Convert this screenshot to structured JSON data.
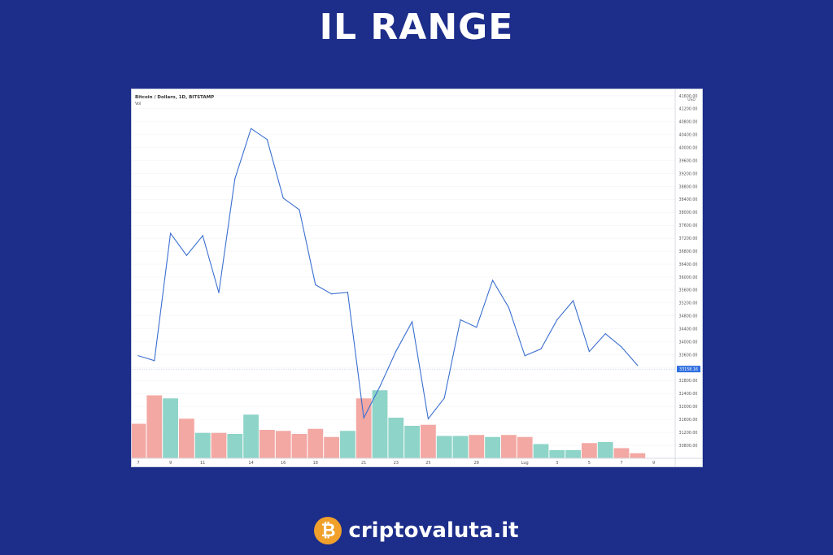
{
  "page": {
    "headline": "IL RANGE",
    "brand": {
      "name": "criptovaluta.it",
      "logo_glyph": "₿",
      "logo_color": "#f0a02b"
    },
    "background_color": "#1c2d8a"
  },
  "chart_data": {
    "type": "line",
    "title": "Bitcoin / Dollaro, 1D, BITSTAMP",
    "subtitle": "Vol",
    "currency_label": "USD",
    "y_axis_side": "right",
    "ylim": [
      30400,
      41800
    ],
    "yticks": [
      30800,
      31200,
      31600,
      32000,
      32400,
      32800,
      33200,
      33600,
      34000,
      34400,
      34800,
      35200,
      35600,
      36000,
      36400,
      36800,
      37200,
      37600,
      38000,
      38400,
      38800,
      39200,
      39600,
      40000,
      40400,
      40800,
      41200,
      41600
    ],
    "x_ticks": [
      {
        "i": 0,
        "label": "7"
      },
      {
        "i": 2,
        "label": "9"
      },
      {
        "i": 4,
        "label": "11"
      },
      {
        "i": 7,
        "label": "14"
      },
      {
        "i": 9,
        "label": "16"
      },
      {
        "i": 11,
        "label": "18"
      },
      {
        "i": 14,
        "label": "21"
      },
      {
        "i": 16,
        "label": "23"
      },
      {
        "i": 18,
        "label": "25"
      },
      {
        "i": 21,
        "label": "28"
      },
      {
        "i": 24,
        "label": "Lug"
      },
      {
        "i": 26,
        "label": "3"
      },
      {
        "i": 28,
        "label": "5"
      },
      {
        "i": 30,
        "label": "7"
      },
      {
        "i": 32,
        "label": "9"
      }
    ],
    "price_series": {
      "name": "BTC/USD",
      "values": [
        33570,
        33420,
        37350,
        36670,
        37280,
        35520,
        39040,
        40590,
        40250,
        38440,
        38080,
        35760,
        35480,
        35530,
        31650,
        32620,
        33710,
        34620,
        31620,
        32260,
        34680,
        34450,
        35900,
        35060,
        33570,
        33780,
        34680,
        35270,
        33700,
        34250,
        33840,
        33270
      ]
    },
    "last_price_label": "33158.16",
    "last_price": 33158,
    "volume_series": {
      "name": "Vol",
      "values": [
        0.34,
        0.62,
        0.59,
        0.39,
        0.25,
        0.25,
        0.24,
        0.43,
        0.28,
        0.27,
        0.24,
        0.29,
        0.21,
        0.27,
        0.59,
        0.67,
        0.4,
        0.32,
        0.33,
        0.22,
        0.22,
        0.23,
        0.21,
        0.23,
        0.21,
        0.14,
        0.08,
        0.08,
        0.15,
        0.16,
        0.1,
        0.05
      ],
      "direction": [
        "down",
        "down",
        "up",
        "down",
        "up",
        "down",
        "up",
        "up",
        "down",
        "down",
        "down",
        "down",
        "down",
        "up",
        "down",
        "up",
        "up",
        "up",
        "down",
        "up",
        "up",
        "down",
        "up",
        "down",
        "down",
        "up",
        "up",
        "up",
        "down",
        "up",
        "down",
        "down"
      ]
    },
    "colors": {
      "line": "#3a6fd0",
      "up": "#8ed4c8",
      "down": "#f3a8a3",
      "price_badge": "#2f6fe0",
      "grid": "#f2f3f7"
    },
    "grid": false,
    "legend": "top-left"
  }
}
